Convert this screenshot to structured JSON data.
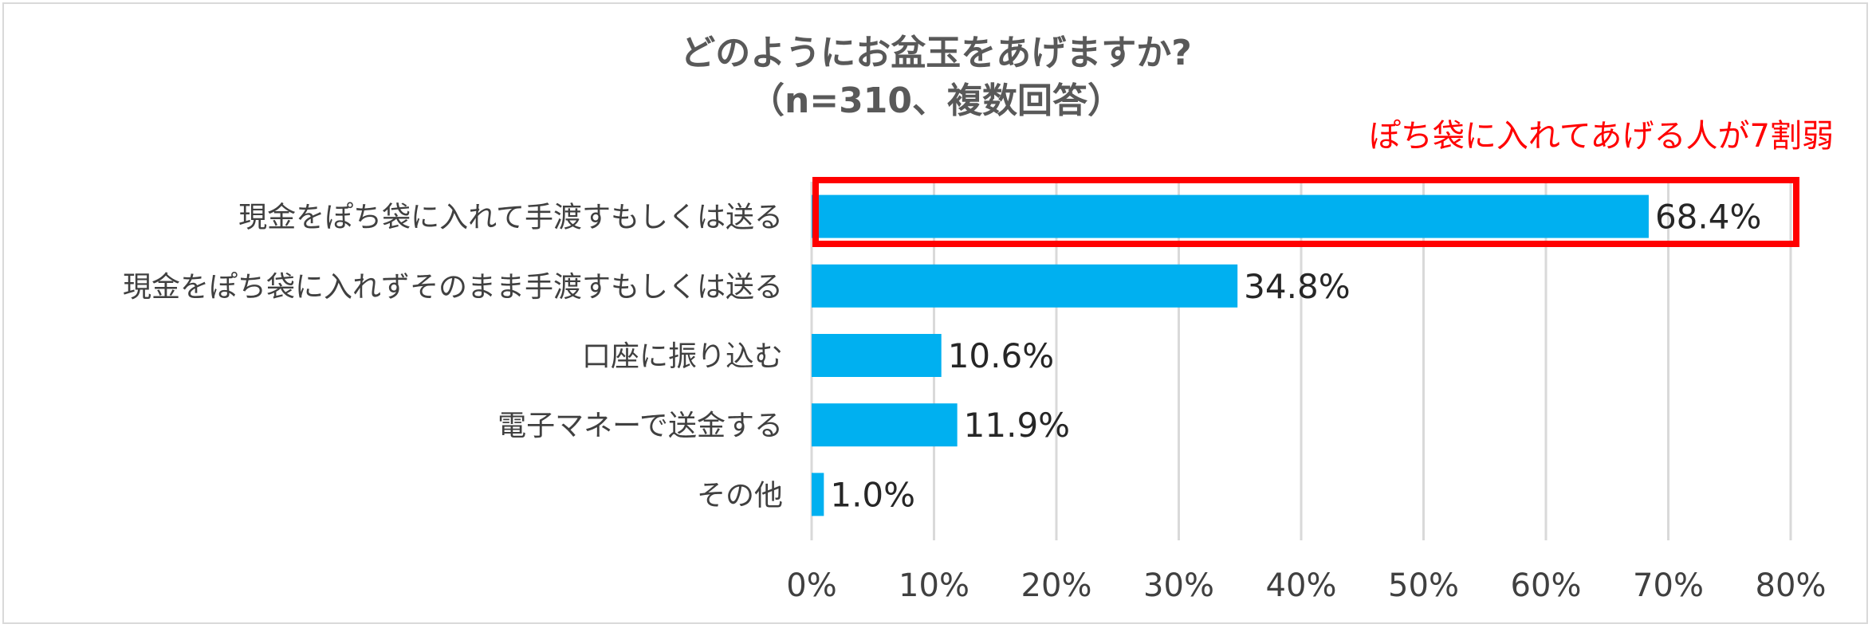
{
  "chart_data": {
    "type": "bar",
    "orientation": "horizontal",
    "title": "どのようにお盆玉をあげますか?",
    "subtitle": "（n=310、複数回答）",
    "annotation": "ぽち袋に入れてあげる人が7割弱",
    "categories": [
      "現金をぽち袋に入れて手渡すもしくは送る",
      "現金をぽち袋に入れずそのまま手渡すもしくは送る",
      "口座に振り込む",
      "電子マネーで送金する",
      "その他"
    ],
    "values": [
      68.4,
      34.8,
      10.6,
      11.9,
      1.0
    ],
    "value_labels": [
      "68.4%",
      "34.8%",
      "10.6%",
      "11.9%",
      "1.0%"
    ],
    "xlim": [
      0,
      80
    ],
    "x_ticks": [
      "0%",
      "10%",
      "20%",
      "30%",
      "40%",
      "50%",
      "60%",
      "70%",
      "80%"
    ],
    "grid": true,
    "highlight_index": 0,
    "colors": {
      "bar": "#00b0f0",
      "highlight": "#ff0000",
      "grid": "#d9d9d9"
    }
  }
}
